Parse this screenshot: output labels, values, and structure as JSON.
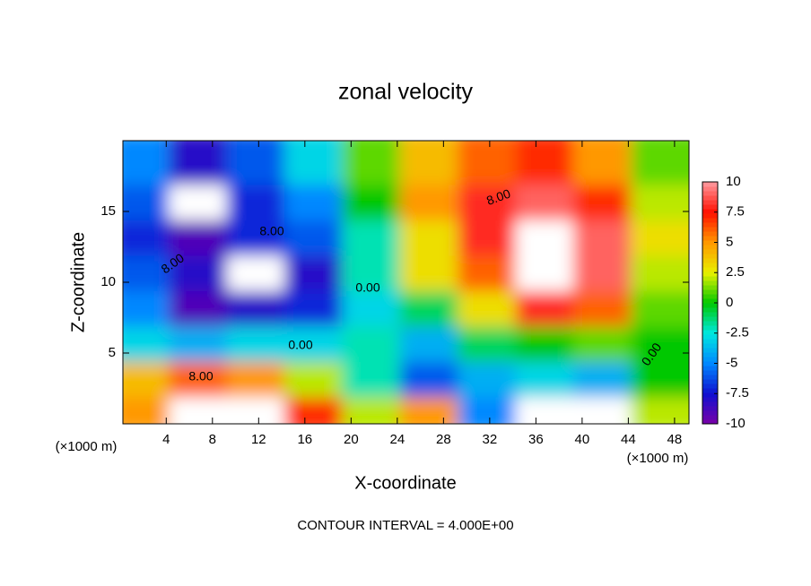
{
  "chart_data": {
    "type": "heatmap",
    "title": "zonal velocity",
    "x_label": "X-coordinate",
    "y_label": "Z-coordinate",
    "x_unit": "(×1000 m)",
    "x_unit_right": "(×1000 m)",
    "footer": "CONTOUR INTERVAL = 4.000E+00",
    "x": [
      2.5,
      7.5,
      12.5,
      17.5,
      22.5,
      27.5,
      32.5,
      37.5,
      42.5,
      47.5
    ],
    "y": [
      1.25,
      3.75,
      6.25,
      8.75,
      11.25,
      13.75,
      16.25,
      18.75
    ],
    "z": [
      [
        5,
        11,
        11,
        7,
        2,
        5,
        -5,
        11,
        11,
        2
      ],
      [
        4,
        6,
        5,
        2,
        -2,
        -6,
        -4,
        -3,
        -4,
        0
      ],
      [
        -3,
        -4,
        -3,
        -3,
        -2,
        -4,
        -1,
        0,
        1,
        0
      ],
      [
        -5,
        -9,
        -8,
        -7,
        -3,
        -1,
        3,
        8,
        6,
        1
      ],
      [
        -6,
        -8,
        11,
        -8,
        -2,
        3,
        6,
        11,
        9,
        2
      ],
      [
        -7,
        -9,
        -7,
        -6,
        -2,
        3,
        8,
        11,
        9,
        3
      ],
      [
        -6,
        11,
        -7,
        -5,
        0,
        5,
        8,
        9,
        7,
        2
      ],
      [
        -5,
        -8,
        -6,
        -3,
        1,
        4,
        6,
        7,
        5,
        1
      ]
    ],
    "xlim": [
      0.25,
      49.25
    ],
    "ylim": [
      0,
      20
    ],
    "xticks": [
      4,
      8,
      12,
      16,
      20,
      24,
      28,
      32,
      36,
      40,
      44,
      48
    ],
    "yticks": [
      5,
      10,
      15
    ],
    "clim": [
      -10,
      10
    ],
    "cticks": [
      -10,
      -7.5,
      -5,
      -2.5,
      0,
      2.5,
      5,
      7.5,
      10
    ],
    "colorscale": [
      "#7a00a8",
      "#1010d0",
      "#0088ff",
      "#00e8e0",
      "#00c800",
      "#e8f000",
      "#ff9800",
      "#ff1000",
      "#ff9aa0"
    ],
    "over_color": "#ffffff",
    "annotations": [
      "8.00",
      "8.00",
      "0.00",
      "0.00",
      "8.00",
      "8.00",
      "0.00"
    ]
  }
}
